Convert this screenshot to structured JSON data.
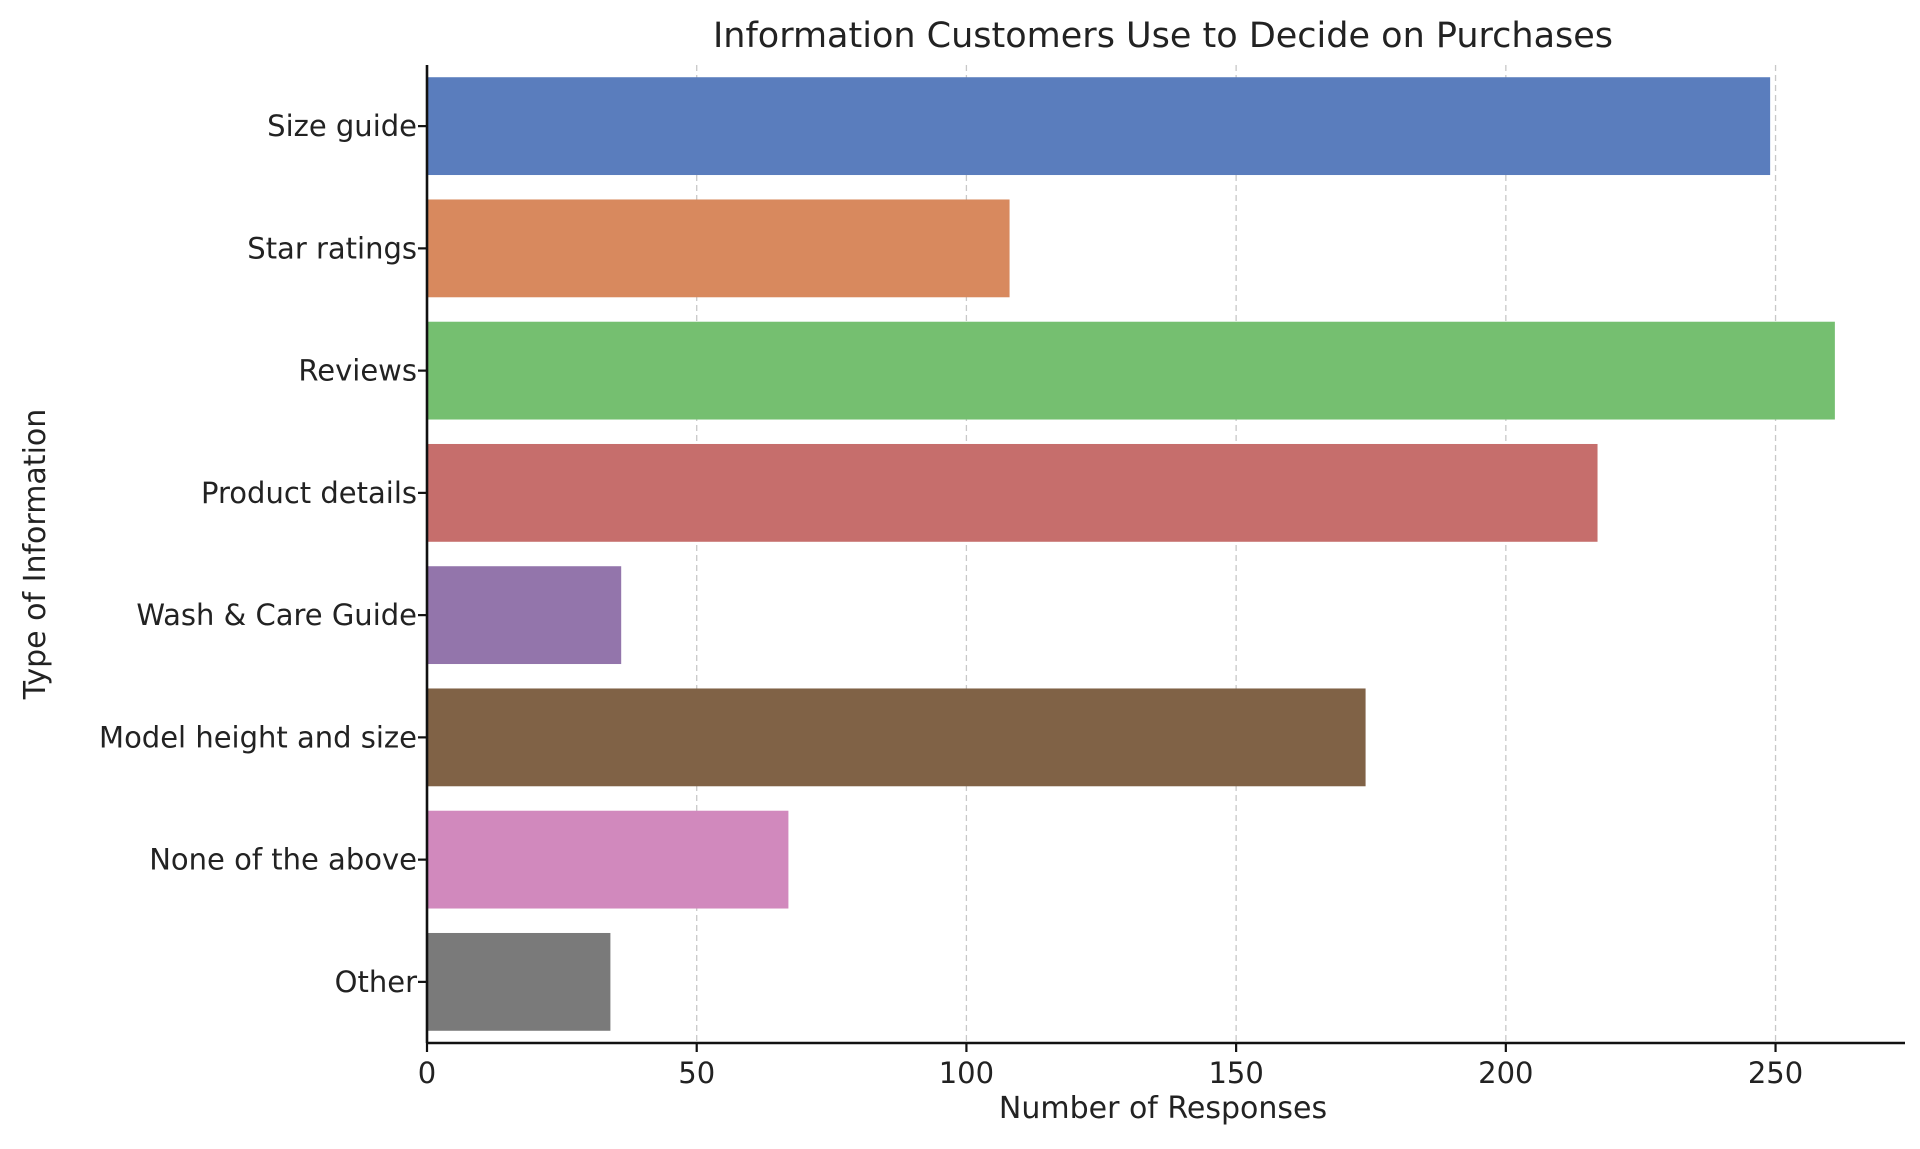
{
  "chart_data": {
    "type": "bar",
    "orientation": "horizontal",
    "title": "Information Customers Use to Decide on Purchases",
    "xlabel": "Number of Responses",
    "ylabel": "Type of Information",
    "categories": [
      "Size guide",
      "Star ratings",
      "Reviews",
      "Product details",
      "Wash & Care Guide",
      "Model height and size",
      "None of the above",
      "Other"
    ],
    "values": [
      249,
      108,
      261,
      217,
      36,
      174,
      67,
      34
    ],
    "colors": [
      "#5a7dbd",
      "#d8895e",
      "#75bf70",
      "#c66e6c",
      "#9375ab",
      "#806246",
      "#d189bd",
      "#7a7a7a"
    ],
    "xlim": [
      0,
      274
    ],
    "xticks": [
      0,
      50,
      100,
      150,
      200,
      250
    ],
    "grid": "vertical dashed",
    "legend": "none"
  }
}
